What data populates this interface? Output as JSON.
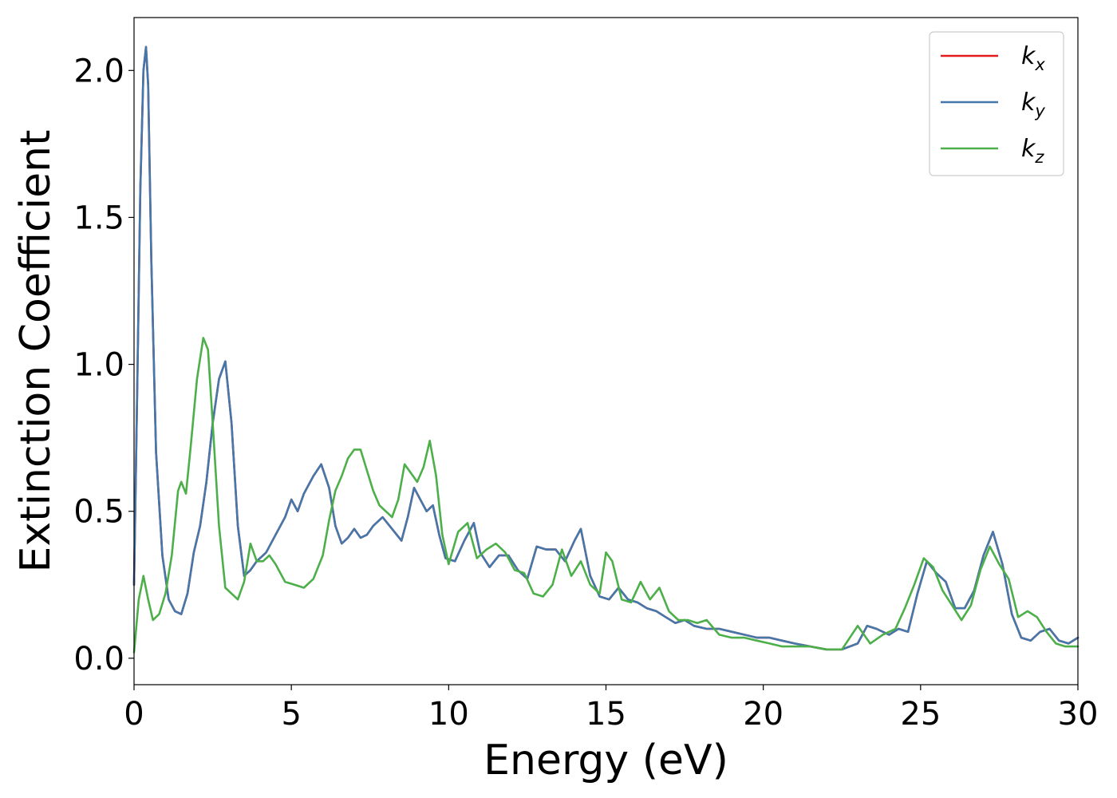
{
  "chart_data": {
    "type": "line",
    "xlabel": "Energy (eV)",
    "ylabel": "Extinction Coefficient",
    "xlim": [
      0,
      30
    ],
    "ylim": [
      -0.09,
      2.18
    ],
    "xticks": [
      0,
      5,
      10,
      15,
      20,
      25,
      30
    ],
    "xtick_labels": [
      "0",
      "5",
      "10",
      "15",
      "20",
      "25",
      "30"
    ],
    "yticks": [
      0.0,
      0.5,
      1.0,
      1.5,
      2.0
    ],
    "ytick_labels": [
      "0.0",
      "0.5",
      "1.0",
      "1.5",
      "2.0"
    ],
    "grid": false,
    "legend_position": "top-right",
    "series": [
      {
        "name": "k_x",
        "label_base": "k",
        "label_sub": "x",
        "color": "#e41a1c",
        "x": [
          0,
          0.1,
          0.2,
          0.3,
          0.38,
          0.45,
          0.55,
          0.7,
          0.9,
          1.1,
          1.3,
          1.5,
          1.7,
          1.9,
          2.1,
          2.3,
          2.5,
          2.7,
          2.9,
          3.1,
          3.3,
          3.5,
          3.7,
          3.9,
          4.2,
          4.5,
          4.8,
          5.0,
          5.2,
          5.4,
          5.7,
          5.95,
          6.2,
          6.4,
          6.6,
          6.8,
          7.0,
          7.2,
          7.4,
          7.6,
          7.9,
          8.2,
          8.5,
          8.7,
          8.9,
          9.1,
          9.3,
          9.5,
          9.7,
          9.9,
          10.2,
          10.5,
          10.8,
          11.0,
          11.3,
          11.6,
          11.9,
          12.2,
          12.5,
          12.8,
          13.1,
          13.4,
          13.7,
          14.0,
          14.2,
          14.5,
          14.8,
          15.1,
          15.4,
          15.7,
          16.0,
          16.3,
          16.6,
          16.9,
          17.2,
          17.5,
          17.8,
          18.2,
          18.6,
          19.0,
          19.4,
          19.8,
          20.2,
          20.6,
          21.0,
          21.5,
          22.0,
          22.5,
          23.0,
          23.3,
          23.6,
          24.0,
          24.3,
          24.6,
          24.9,
          25.2,
          25.5,
          25.8,
          26.1,
          26.4,
          26.7,
          27.0,
          27.3,
          27.6,
          27.9,
          28.2,
          28.5,
          28.8,
          29.1,
          29.4,
          29.7,
          30.0
        ],
        "y": [
          0.25,
          0.9,
          1.6,
          2.0,
          2.08,
          1.95,
          1.35,
          0.7,
          0.35,
          0.2,
          0.16,
          0.15,
          0.22,
          0.36,
          0.45,
          0.6,
          0.8,
          0.95,
          1.01,
          0.8,
          0.45,
          0.28,
          0.3,
          0.33,
          0.36,
          0.42,
          0.48,
          0.54,
          0.5,
          0.56,
          0.62,
          0.66,
          0.58,
          0.45,
          0.39,
          0.41,
          0.44,
          0.41,
          0.42,
          0.45,
          0.48,
          0.44,
          0.4,
          0.48,
          0.58,
          0.54,
          0.5,
          0.52,
          0.42,
          0.34,
          0.33,
          0.4,
          0.46,
          0.36,
          0.31,
          0.35,
          0.35,
          0.3,
          0.27,
          0.38,
          0.37,
          0.37,
          0.33,
          0.4,
          0.44,
          0.28,
          0.21,
          0.2,
          0.24,
          0.2,
          0.19,
          0.17,
          0.16,
          0.14,
          0.12,
          0.13,
          0.11,
          0.1,
          0.1,
          0.09,
          0.08,
          0.07,
          0.07,
          0.06,
          0.05,
          0.04,
          0.03,
          0.03,
          0.05,
          0.11,
          0.1,
          0.08,
          0.1,
          0.09,
          0.22,
          0.33,
          0.29,
          0.26,
          0.17,
          0.17,
          0.23,
          0.35,
          0.43,
          0.32,
          0.15,
          0.07,
          0.06,
          0.09,
          0.1,
          0.06,
          0.05,
          0.07
        ]
      },
      {
        "name": "k_y",
        "label_base": "k",
        "label_sub": "y",
        "color": "#4477aa",
        "x": [
          0,
          0.1,
          0.2,
          0.3,
          0.38,
          0.45,
          0.55,
          0.7,
          0.9,
          1.1,
          1.3,
          1.5,
          1.7,
          1.9,
          2.1,
          2.3,
          2.5,
          2.7,
          2.9,
          3.1,
          3.3,
          3.5,
          3.7,
          3.9,
          4.2,
          4.5,
          4.8,
          5.0,
          5.2,
          5.4,
          5.7,
          5.95,
          6.2,
          6.4,
          6.6,
          6.8,
          7.0,
          7.2,
          7.4,
          7.6,
          7.9,
          8.2,
          8.5,
          8.7,
          8.9,
          9.1,
          9.3,
          9.5,
          9.7,
          9.9,
          10.2,
          10.5,
          10.8,
          11.0,
          11.3,
          11.6,
          11.9,
          12.2,
          12.5,
          12.8,
          13.1,
          13.4,
          13.7,
          14.0,
          14.2,
          14.5,
          14.8,
          15.1,
          15.4,
          15.7,
          16.0,
          16.3,
          16.6,
          16.9,
          17.2,
          17.5,
          17.8,
          18.2,
          18.6,
          19.0,
          19.4,
          19.8,
          20.2,
          20.6,
          21.0,
          21.5,
          22.0,
          22.5,
          23.0,
          23.3,
          23.6,
          24.0,
          24.3,
          24.6,
          24.9,
          25.2,
          25.5,
          25.8,
          26.1,
          26.4,
          26.7,
          27.0,
          27.3,
          27.6,
          27.9,
          28.2,
          28.5,
          28.8,
          29.1,
          29.4,
          29.7,
          30.0
        ],
        "y": [
          0.25,
          0.9,
          1.6,
          2.0,
          2.08,
          1.95,
          1.35,
          0.7,
          0.35,
          0.2,
          0.16,
          0.15,
          0.22,
          0.36,
          0.45,
          0.6,
          0.8,
          0.95,
          1.01,
          0.8,
          0.45,
          0.28,
          0.3,
          0.33,
          0.36,
          0.42,
          0.48,
          0.54,
          0.5,
          0.56,
          0.62,
          0.66,
          0.58,
          0.45,
          0.39,
          0.41,
          0.44,
          0.41,
          0.42,
          0.45,
          0.48,
          0.44,
          0.4,
          0.48,
          0.58,
          0.54,
          0.5,
          0.52,
          0.42,
          0.34,
          0.33,
          0.4,
          0.46,
          0.36,
          0.31,
          0.35,
          0.35,
          0.3,
          0.27,
          0.38,
          0.37,
          0.37,
          0.33,
          0.4,
          0.44,
          0.28,
          0.21,
          0.2,
          0.24,
          0.2,
          0.19,
          0.17,
          0.16,
          0.14,
          0.12,
          0.13,
          0.11,
          0.1,
          0.1,
          0.09,
          0.08,
          0.07,
          0.07,
          0.06,
          0.05,
          0.04,
          0.03,
          0.03,
          0.05,
          0.11,
          0.1,
          0.08,
          0.1,
          0.09,
          0.22,
          0.33,
          0.29,
          0.26,
          0.17,
          0.17,
          0.23,
          0.35,
          0.43,
          0.32,
          0.15,
          0.07,
          0.06,
          0.09,
          0.1,
          0.06,
          0.05,
          0.07
        ]
      },
      {
        "name": "k_z",
        "label_base": "k",
        "label_sub": "z",
        "color": "#4daf4a",
        "x": [
          0,
          0.15,
          0.3,
          0.45,
          0.6,
          0.8,
          1.0,
          1.2,
          1.4,
          1.5,
          1.65,
          1.8,
          2.0,
          2.2,
          2.35,
          2.5,
          2.7,
          2.9,
          3.1,
          3.3,
          3.5,
          3.7,
          3.9,
          4.1,
          4.3,
          4.5,
          4.8,
          5.1,
          5.4,
          5.7,
          6.0,
          6.2,
          6.4,
          6.6,
          6.8,
          7.0,
          7.2,
          7.4,
          7.6,
          7.8,
          8.0,
          8.2,
          8.4,
          8.6,
          8.8,
          9.0,
          9.2,
          9.4,
          9.6,
          9.8,
          10.0,
          10.3,
          10.6,
          10.9,
          11.2,
          11.5,
          11.8,
          12.1,
          12.4,
          12.7,
          13.0,
          13.3,
          13.6,
          13.9,
          14.2,
          14.5,
          14.8,
          15.0,
          15.2,
          15.5,
          15.8,
          16.1,
          16.4,
          16.7,
          17.0,
          17.3,
          17.6,
          17.9,
          18.2,
          18.6,
          19.0,
          19.4,
          19.8,
          20.2,
          20.6,
          21.0,
          21.5,
          22.0,
          22.5,
          23.0,
          23.4,
          23.8,
          24.2,
          24.5,
          24.8,
          25.1,
          25.4,
          25.7,
          26.0,
          26.3,
          26.6,
          26.9,
          27.2,
          27.5,
          27.8,
          28.1,
          28.4,
          28.7,
          29.0,
          29.3,
          29.6,
          30.0
        ],
        "y": [
          0.02,
          0.2,
          0.28,
          0.2,
          0.13,
          0.15,
          0.22,
          0.35,
          0.57,
          0.6,
          0.56,
          0.72,
          0.95,
          1.09,
          1.05,
          0.8,
          0.45,
          0.24,
          0.22,
          0.2,
          0.26,
          0.39,
          0.33,
          0.33,
          0.35,
          0.32,
          0.26,
          0.25,
          0.24,
          0.27,
          0.35,
          0.47,
          0.57,
          0.62,
          0.68,
          0.71,
          0.71,
          0.64,
          0.57,
          0.52,
          0.5,
          0.48,
          0.54,
          0.66,
          0.63,
          0.6,
          0.65,
          0.74,
          0.62,
          0.42,
          0.32,
          0.43,
          0.46,
          0.34,
          0.37,
          0.39,
          0.36,
          0.3,
          0.29,
          0.22,
          0.21,
          0.25,
          0.37,
          0.28,
          0.33,
          0.25,
          0.22,
          0.36,
          0.33,
          0.2,
          0.19,
          0.26,
          0.2,
          0.24,
          0.16,
          0.13,
          0.13,
          0.12,
          0.13,
          0.08,
          0.07,
          0.07,
          0.06,
          0.05,
          0.04,
          0.04,
          0.04,
          0.03,
          0.03,
          0.11,
          0.05,
          0.08,
          0.1,
          0.17,
          0.25,
          0.34,
          0.31,
          0.23,
          0.18,
          0.13,
          0.18,
          0.3,
          0.38,
          0.32,
          0.27,
          0.14,
          0.16,
          0.14,
          0.09,
          0.05,
          0.04,
          0.04
        ]
      }
    ]
  }
}
